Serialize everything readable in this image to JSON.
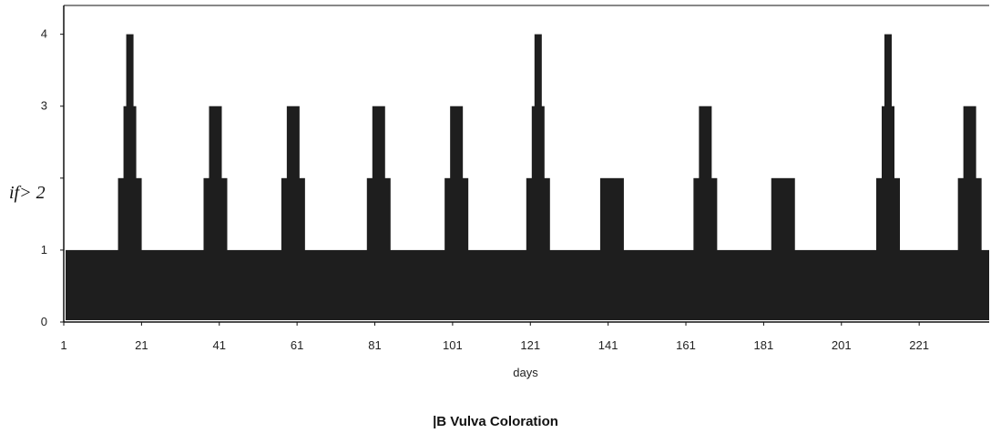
{
  "chart_data": {
    "type": "bar",
    "ylabel": "if> 2",
    "xlabel": "days",
    "ylim": [
      0,
      4.4
    ],
    "xlim": [
      1,
      239
    ],
    "yticks": [
      0,
      1,
      2,
      3,
      4
    ],
    "ytick_labels": [
      "0",
      "1",
      "",
      "3",
      "4"
    ],
    "xticks": [
      1,
      21,
      41,
      61,
      81,
      101,
      121,
      141,
      161,
      181,
      201,
      221
    ],
    "xtick_labels": [
      "1",
      "21",
      "41",
      "61",
      "81",
      "101",
      "121",
      "141",
      "161",
      "181",
      "201",
      "221"
    ],
    "grid": false,
    "legend_position": "bottom",
    "series": [
      {
        "name": "B Vulva Coloration",
        "baseline": 1,
        "peaks": [
          {
            "day": 18,
            "value": 4
          },
          {
            "day": 40,
            "value": 3
          },
          {
            "day": 60,
            "value": 3
          },
          {
            "day": 82,
            "value": 3
          },
          {
            "day": 102,
            "value": 3
          },
          {
            "day": 123,
            "value": 4
          },
          {
            "day": 142,
            "value": 2
          },
          {
            "day": 166,
            "value": 3
          },
          {
            "day": 186,
            "value": 2
          },
          {
            "day": 213,
            "value": 4
          },
          {
            "day": 234,
            "value": 3
          }
        ]
      }
    ],
    "legend_label": "|B Vulva Coloration"
  },
  "colors": {
    "bar": "#1e1e1e",
    "axis": "#111111"
  }
}
